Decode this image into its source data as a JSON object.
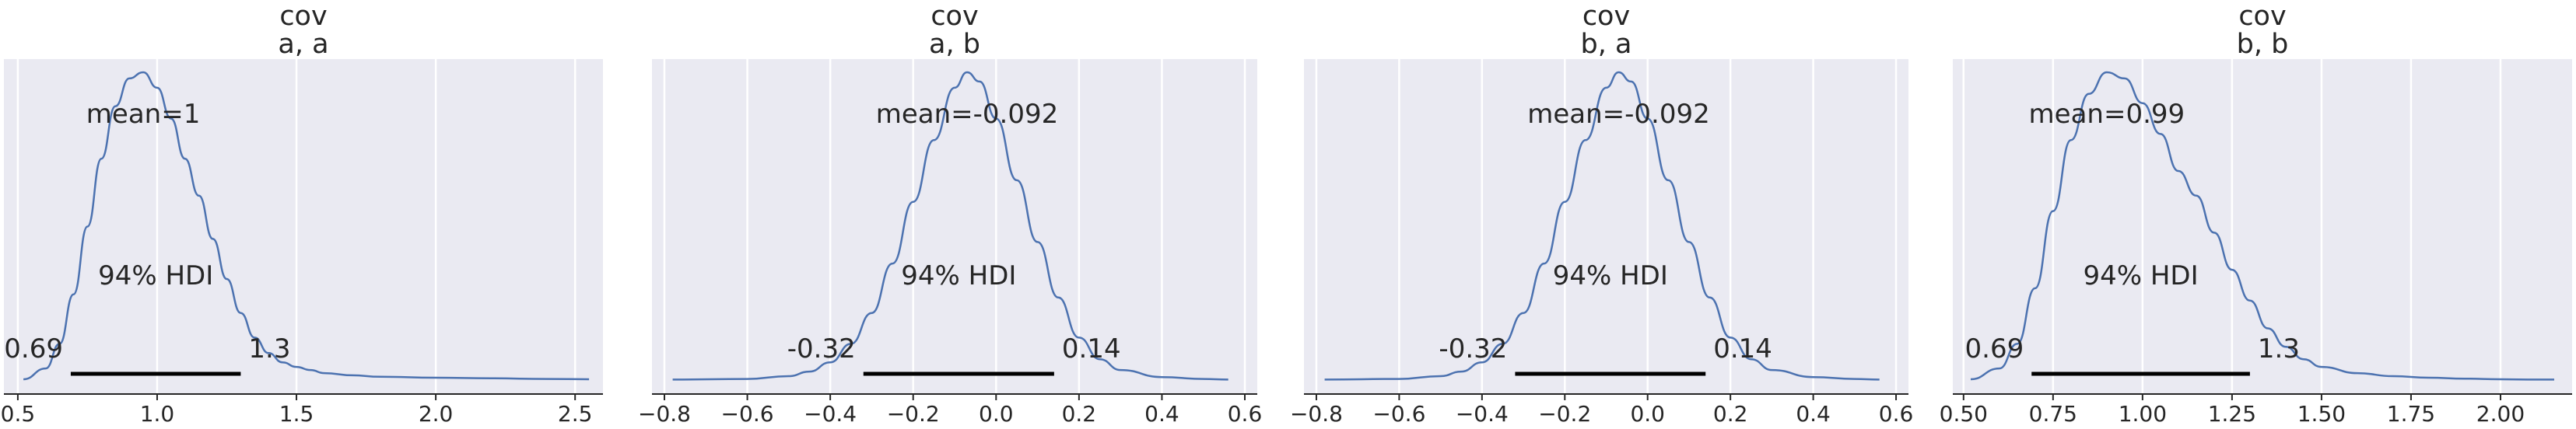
{
  "chart_data": [
    {
      "type": "area",
      "title_line1": "cov",
      "title_line2": "a, a",
      "mean_label": "mean=1",
      "hdi_label": "94% HDI",
      "hdi_low": 0.69,
      "hdi_high": 1.3,
      "hdi_low_label": "0.69",
      "hdi_high_label": "1.3",
      "xlim": [
        0.45,
        2.6
      ],
      "xticks": [
        0.5,
        1.0,
        1.5,
        2.0,
        2.5
      ],
      "xtick_labels": [
        "0.5",
        "1.0",
        "1.5",
        "2.0",
        "2.5"
      ],
      "density": {
        "x": [
          0.52,
          0.6,
          0.65,
          0.7,
          0.75,
          0.8,
          0.85,
          0.9,
          0.95,
          1.0,
          1.05,
          1.1,
          1.15,
          1.2,
          1.25,
          1.3,
          1.35,
          1.4,
          1.45,
          1.5,
          1.55,
          1.6,
          1.7,
          1.8,
          2.0,
          2.2,
          2.4,
          2.55
        ],
        "y": [
          0.005,
          0.04,
          0.12,
          0.28,
          0.5,
          0.72,
          0.89,
          0.98,
          1.0,
          0.95,
          0.85,
          0.72,
          0.6,
          0.46,
          0.33,
          0.22,
          0.14,
          0.09,
          0.06,
          0.045,
          0.035,
          0.025,
          0.018,
          0.013,
          0.01,
          0.008,
          0.006,
          0.005
        ]
      }
    },
    {
      "type": "area",
      "title_line1": "cov",
      "title_line2": "a, b",
      "mean_label": "mean=-0.092",
      "hdi_label": "94% HDI",
      "hdi_low": -0.32,
      "hdi_high": 0.14,
      "hdi_low_label": "-0.32",
      "hdi_high_label": "0.14",
      "xlim": [
        -0.83,
        0.63
      ],
      "xticks": [
        -0.8,
        -0.6,
        -0.4,
        -0.2,
        0.0,
        0.2,
        0.4,
        0.6
      ],
      "xtick_labels": [
        "−0.8",
        "−0.6",
        "−0.4",
        "−0.2",
        "0.0",
        "0.2",
        "0.4",
        "0.6"
      ],
      "density": {
        "x": [
          -0.78,
          -0.6,
          -0.5,
          -0.45,
          -0.4,
          -0.35,
          -0.3,
          -0.25,
          -0.2,
          -0.15,
          -0.1,
          -0.07,
          -0.04,
          0.0,
          0.05,
          0.1,
          0.15,
          0.2,
          0.25,
          0.3,
          0.4,
          0.5,
          0.56
        ],
        "y": [
          0.004,
          0.006,
          0.015,
          0.03,
          0.06,
          0.12,
          0.22,
          0.38,
          0.58,
          0.78,
          0.95,
          1.0,
          0.97,
          0.85,
          0.65,
          0.45,
          0.27,
          0.14,
          0.07,
          0.035,
          0.012,
          0.006,
          0.004
        ]
      }
    },
    {
      "type": "area",
      "title_line1": "cov",
      "title_line2": "b, a",
      "mean_label": "mean=-0.092",
      "hdi_label": "94% HDI",
      "hdi_low": -0.32,
      "hdi_high": 0.14,
      "hdi_low_label": "-0.32",
      "hdi_high_label": "0.14",
      "xlim": [
        -0.83,
        0.63
      ],
      "xticks": [
        -0.8,
        -0.6,
        -0.4,
        -0.2,
        0.0,
        0.2,
        0.4,
        0.6
      ],
      "xtick_labels": [
        "−0.8",
        "−0.6",
        "−0.4",
        "−0.2",
        "0.0",
        "0.2",
        "0.4",
        "0.6"
      ],
      "density": {
        "x": [
          -0.78,
          -0.6,
          -0.5,
          -0.45,
          -0.4,
          -0.35,
          -0.3,
          -0.25,
          -0.2,
          -0.15,
          -0.1,
          -0.07,
          -0.04,
          0.0,
          0.05,
          0.1,
          0.15,
          0.2,
          0.25,
          0.3,
          0.4,
          0.5,
          0.56
        ],
        "y": [
          0.004,
          0.006,
          0.015,
          0.03,
          0.06,
          0.12,
          0.22,
          0.38,
          0.58,
          0.78,
          0.95,
          1.0,
          0.97,
          0.85,
          0.65,
          0.45,
          0.27,
          0.14,
          0.07,
          0.035,
          0.012,
          0.006,
          0.004
        ]
      }
    },
    {
      "type": "area",
      "title_line1": "cov",
      "title_line2": "b, b",
      "mean_label": "mean=0.99",
      "hdi_label": "94% HDI",
      "hdi_low": 0.69,
      "hdi_high": 1.3,
      "hdi_low_label": "0.69",
      "hdi_high_label": "1.3",
      "xlim": [
        0.47,
        2.2
      ],
      "xticks": [
        0.5,
        0.75,
        1.0,
        1.25,
        1.5,
        1.75,
        2.0
      ],
      "xtick_labels": [
        "0.50",
        "0.75",
        "1.00",
        "1.25",
        "1.50",
        "1.75",
        "2.00"
      ],
      "density": {
        "x": [
          0.52,
          0.6,
          0.65,
          0.7,
          0.75,
          0.8,
          0.85,
          0.9,
          0.95,
          1.0,
          1.05,
          1.1,
          1.15,
          1.2,
          1.25,
          1.3,
          1.35,
          1.4,
          1.45,
          1.5,
          1.6,
          1.7,
          1.8,
          1.9,
          2.0,
          2.1,
          2.15
        ],
        "y": [
          0.005,
          0.04,
          0.12,
          0.3,
          0.55,
          0.78,
          0.93,
          1.0,
          0.98,
          0.9,
          0.8,
          0.68,
          0.6,
          0.48,
          0.36,
          0.26,
          0.17,
          0.11,
          0.07,
          0.045,
          0.025,
          0.015,
          0.01,
          0.007,
          0.005,
          0.004,
          0.004
        ]
      }
    }
  ]
}
